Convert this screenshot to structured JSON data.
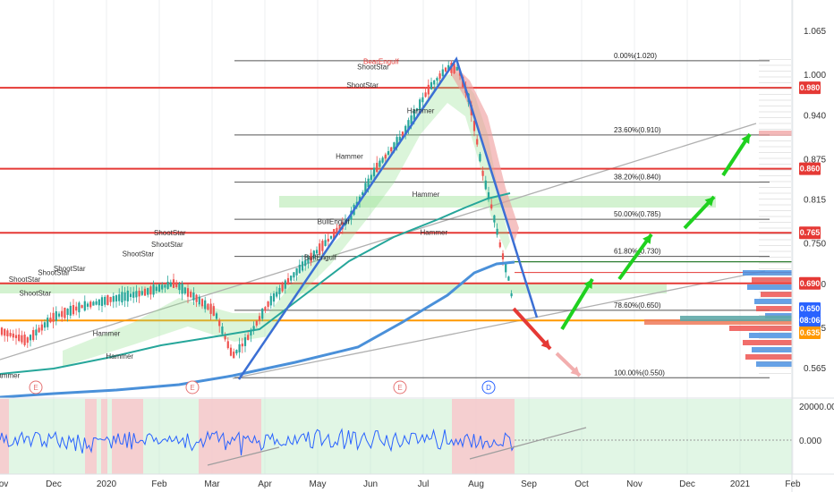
{
  "chart_data": {
    "type": "candlestick",
    "x_ticks": [
      "Dec",
      "2020",
      "Feb",
      "Mar",
      "Apr",
      "May",
      "Jun",
      "Jul",
      "Aug",
      "Sep",
      "Oct",
      "Nov",
      "Dec",
      "2021",
      "Feb"
    ],
    "y_ticks": [
      "1.065",
      "1.000",
      "0.940",
      "0.875",
      "0.815",
      "0.750",
      "0.690",
      "0.625",
      "0.565"
    ],
    "osc_ticks": [
      "20000.000",
      "0.000"
    ],
    "price_badges": [
      {
        "value": "0.980",
        "color": "#e53935"
      },
      {
        "value": "0.860",
        "color": "#e53935"
      },
      {
        "value": "0.765",
        "color": "#e53935"
      },
      {
        "value": "0.690",
        "color": "#e53935"
      },
      {
        "value": "0.650",
        "color": "#2962ff"
      },
      {
        "value": "08:06",
        "color": "#2962ff"
      },
      {
        "value": "0.635",
        "color": "#ff9800"
      }
    ],
    "horizontal_levels": [
      0.98,
      0.86,
      0.765,
      0.69,
      0.635
    ],
    "fib_levels": [
      {
        "label": "0.00%(1.020)",
        "value": 1.02
      },
      {
        "label": "23.60%(0.910)",
        "value": 0.91
      },
      {
        "label": "38.20%(0.840)",
        "value": 0.84
      },
      {
        "label": "50.00%(0.785)",
        "value": 0.785
      },
      {
        "label": "61.80%(0.730)",
        "value": 0.73
      },
      {
        "label": "78.60%(0.650)",
        "value": 0.65
      },
      {
        "label": "100.00%(0.550)",
        "value": 0.55
      }
    ],
    "patterns": [
      {
        "text": "ShootStar",
        "red": false,
        "price": 0.692,
        "month": -0.55
      },
      {
        "text": "ShootStar",
        "red": false,
        "price": 0.672,
        "month": -0.35
      },
      {
        "text": "ShootStar",
        "red": false,
        "price": 0.702,
        "month": 0.0
      },
      {
        "text": "ShootStar",
        "red": false,
        "price": 0.708,
        "month": 0.3
      },
      {
        "text": "ShootStar",
        "red": false,
        "price": 0.73,
        "month": 1.6
      },
      {
        "text": "ShootStar",
        "red": false,
        "price": 0.744,
        "month": 2.15
      },
      {
        "text": "ShootStar",
        "red": false,
        "price": 0.761,
        "month": 2.2
      },
      {
        "text": "ShootStar",
        "red": false,
        "price": 0.98,
        "month": 5.85
      },
      {
        "text": "ShootStar",
        "red": false,
        "price": 1.007,
        "month": 6.05
      },
      {
        "text": "BearEngulf",
        "red": true,
        "price": 1.015,
        "month": 6.2
      },
      {
        "text": "BullEngulf",
        "red": false,
        "price": 0.778,
        "month": 5.3
      },
      {
        "text": "BullEngulf",
        "red": false,
        "price": 0.725,
        "month": 5.05
      },
      {
        "text": "Hammer",
        "red": false,
        "price": 0.875,
        "month": 5.6
      },
      {
        "text": "Hammer",
        "red": false,
        "price": 0.942,
        "month": 6.95
      },
      {
        "text": "Hammer",
        "red": false,
        "price": 0.818,
        "month": 7.05
      },
      {
        "text": "Hammer",
        "red": false,
        "price": 0.762,
        "month": 7.2
      },
      {
        "text": "Hammer",
        "red": false,
        "price": 0.612,
        "month": 1.0
      },
      {
        "text": "Hammer",
        "red": false,
        "price": 0.578,
        "month": 1.25
      },
      {
        "text": "Hammer",
        "red": false,
        "price": 0.55,
        "month": -0.9
      }
    ],
    "earnings_markers": [
      "E",
      "E",
      "E",
      "D"
    ],
    "arrows": {
      "down": 2,
      "up": 5
    }
  }
}
